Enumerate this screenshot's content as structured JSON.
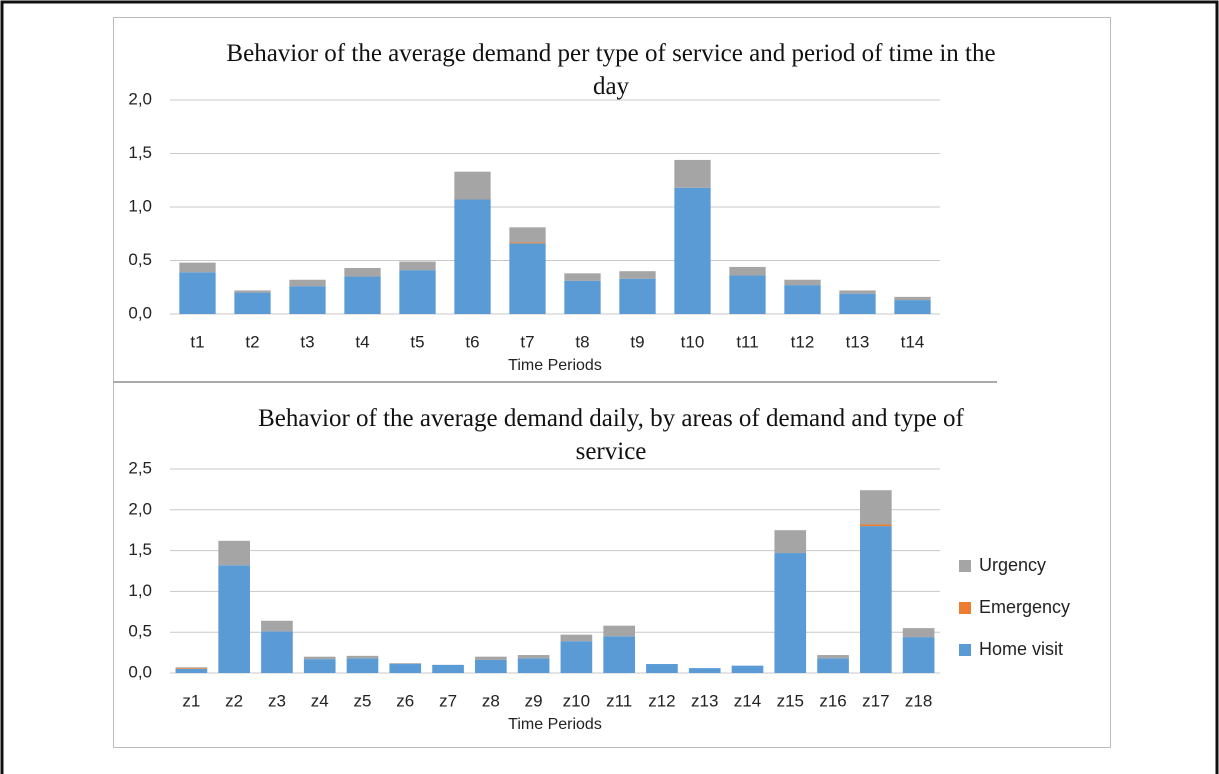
{
  "chart_data": [
    {
      "type": "stacked_bar",
      "title": "Behavior of the average demand per type of service and period of time in the day",
      "x_label": "Time Periods",
      "categories": [
        "t1",
        "t2",
        "t3",
        "t4",
        "t5",
        "t6",
        "t7",
        "t8",
        "t9",
        "t10",
        "t11",
        "t12",
        "t13",
        "t14"
      ],
      "series": [
        {
          "color": "#5b9bd5",
          "values": [
            0.39,
            0.2,
            0.26,
            0.35,
            0.41,
            1.07,
            0.66,
            0.31,
            0.33,
            1.18,
            0.36,
            0.27,
            0.19,
            0.13
          ]
        },
        {
          "color": "#ed7d31",
          "values": [
            0,
            0,
            0,
            0,
            0,
            0,
            0.01,
            0,
            0,
            0,
            0,
            0,
            0,
            0
          ]
        },
        {
          "color": "#a5a5a5",
          "values": [
            0.09,
            0.02,
            0.06,
            0.08,
            0.08,
            0.26,
            0.14,
            0.07,
            0.07,
            0.26,
            0.08,
            0.05,
            0.03,
            0.03
          ]
        }
      ],
      "ylim": [
        0,
        2.0
      ],
      "yticks": [
        {
          "value": 0,
          "label": "0,0"
        },
        {
          "value": 0.5,
          "label": "0,5"
        },
        {
          "value": 1.0,
          "label": "1,0"
        },
        {
          "value": 1.5,
          "label": "1,5"
        },
        {
          "value": 2.0,
          "label": "2,0"
        }
      ],
      "grid": true
    },
    {
      "type": "stacked_bar",
      "title": "Behavior of the average demand daily, by areas of demand and type of service",
      "x_label": "Time Periods",
      "categories": [
        "z1",
        "z2",
        "z3",
        "z4",
        "z5",
        "z6",
        "z7",
        "z8",
        "z9",
        "z10",
        "z11",
        "z12",
        "z13",
        "z14",
        "z15",
        "z16",
        "z17",
        "z18"
      ],
      "series": [
        {
          "name": "Home visit",
          "color": "#5b9bd5",
          "values": [
            0.05,
            1.32,
            0.51,
            0.17,
            0.18,
            0.11,
            0.1,
            0.16,
            0.18,
            0.39,
            0.45,
            0.11,
            0.06,
            0.09,
            1.47,
            0.18,
            1.8,
            0.44
          ]
        },
        {
          "name": "Emergency",
          "color": "#ed7d31",
          "values": [
            0.01,
            0,
            0,
            0,
            0,
            0,
            0,
            0,
            0,
            0,
            0,
            0,
            0,
            0,
            0,
            0,
            0.02,
            0
          ]
        },
        {
          "name": "Urgency",
          "color": "#a5a5a5",
          "values": [
            0.01,
            0.3,
            0.13,
            0.03,
            0.03,
            0.01,
            0,
            0.04,
            0.04,
            0.08,
            0.13,
            0,
            0,
            0,
            0.28,
            0.04,
            0.42,
            0.11
          ]
        }
      ],
      "ylim": [
        0,
        2.5
      ],
      "yticks": [
        {
          "value": 0,
          "label": "0,0"
        },
        {
          "value": 0.5,
          "label": "0,5"
        },
        {
          "value": 1.0,
          "label": "1,0"
        },
        {
          "value": 1.5,
          "label": "1,5"
        },
        {
          "value": 2.0,
          "label": "2,0"
        },
        {
          "value": 2.5,
          "label": "2,5"
        }
      ],
      "grid": true,
      "legend": "right"
    }
  ]
}
